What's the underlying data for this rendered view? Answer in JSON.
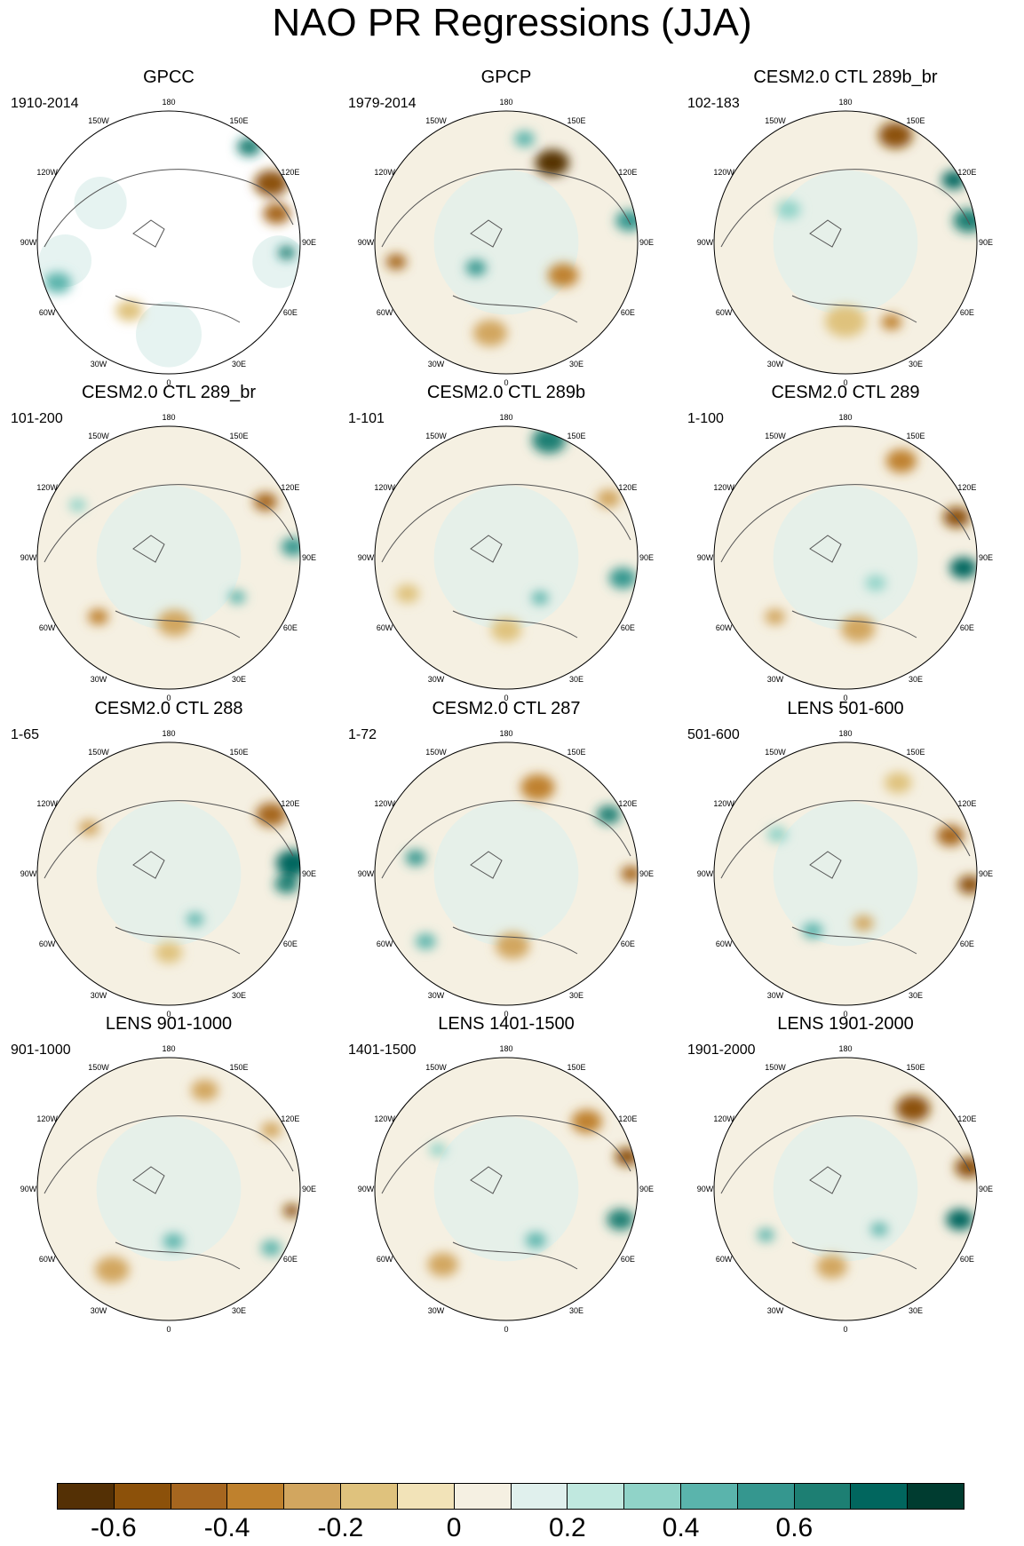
{
  "title": "NAO PR Regressions (JJA)",
  "panels": [
    {
      "title": "GPCC",
      "period": "1910-2014"
    },
    {
      "title": "GPCP",
      "period": "1979-2014"
    },
    {
      "title": "CESM2.0 CTL 289b_br",
      "period": "102-183"
    },
    {
      "title": "CESM2.0 CTL 289_br",
      "period": "101-200"
    },
    {
      "title": "CESM2.0 CTL 289b",
      "period": "1-101"
    },
    {
      "title": "CESM2.0 CTL 289",
      "period": "1-100"
    },
    {
      "title": "CESM2.0 CTL 288",
      "period": "1-65"
    },
    {
      "title": "CESM2.0 CTL 287",
      "period": "1-72"
    },
    {
      "title": "LENS 501-600",
      "period": "501-600"
    },
    {
      "title": "LENS 901-1000",
      "period": "901-1000"
    },
    {
      "title": "LENS 1401-1500",
      "period": "1401-1500"
    },
    {
      "title": "LENS 1901-2000",
      "period": "1901-2000"
    }
  ],
  "lon_labels": [
    "180",
    "150E",
    "120E",
    "90E",
    "60E",
    "30E",
    "0",
    "30W",
    "60W",
    "90W",
    "120W",
    "150W"
  ],
  "colorbar": {
    "colors": [
      "#543005",
      "#8c510a",
      "#a6661f",
      "#bf812d",
      "#d2a65f",
      "#dfc27d",
      "#f2e3b8",
      "#f5f0e2",
      "#e0f0ed",
      "#c0e8df",
      "#90d3c8",
      "#5ab4ac",
      "#35978f",
      "#1d7f73",
      "#01665e",
      "#003c30"
    ],
    "tick_labels": [
      "-0.6",
      "-0.4",
      "-0.2",
      "0",
      "0.2",
      "0.4",
      "0.6"
    ]
  }
}
